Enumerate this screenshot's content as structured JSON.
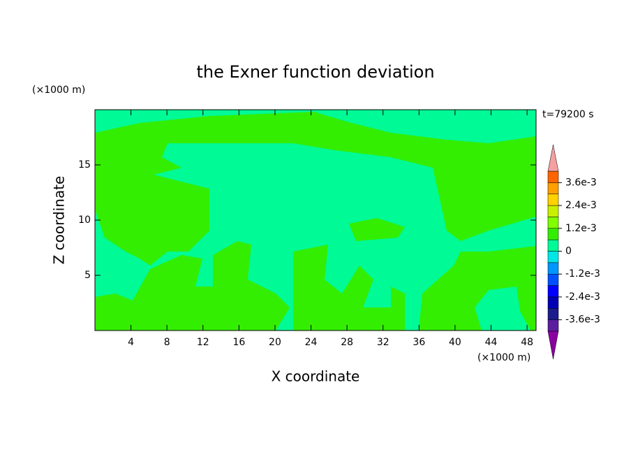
{
  "chart_data": {
    "type": "contour",
    "title": "the Exner function deviation",
    "xlabel": "X coordinate",
    "ylabel": "Z coordinate",
    "x_unit": "(×1000 m)",
    "y_unit": "(×1000 m)",
    "annotation": "t=79200 s",
    "xlim": [
      0,
      49
    ],
    "ylim": [
      0,
      20
    ],
    "xticks": [
      4,
      8,
      12,
      16,
      20,
      24,
      28,
      32,
      36,
      40,
      44,
      48
    ],
    "yticks": [
      5,
      10,
      15
    ],
    "colorbar": {
      "levels": [
        -0.0042,
        -0.0036,
        -0.003,
        -0.0024,
        -0.0018,
        -0.0012,
        -0.0006,
        0,
        0.0006,
        0.0012,
        0.0018,
        0.0024,
        0.003,
        0.0036,
        0.0042
      ],
      "colors": [
        "#5a1e9e",
        "#1c1c8c",
        "#0000b4",
        "#0000ff",
        "#0050ff",
        "#0096ff",
        "#00e6e6",
        "#00fa96",
        "#33ee00",
        "#80ff00",
        "#c8f000",
        "#ffd200",
        "#ffa000",
        "#ff6400",
        "#ff2800"
      ],
      "under_color": "#8b00a0",
      "over_color": "#f4a0a0",
      "ticks": [
        {
          "value": -0.0036,
          "label": "-3.6e-3"
        },
        {
          "value": -0.0024,
          "label": "-2.4e-3"
        },
        {
          "value": -0.0012,
          "label": "-1.2e-3"
        },
        0,
        {
          "value": 0.0012,
          "label": "1.2e-3"
        },
        {
          "value": 0.0024,
          "label": "2.4e-3"
        },
        {
          "value": 0.0036,
          "label": "3.6e-3"
        }
      ]
    }
  }
}
